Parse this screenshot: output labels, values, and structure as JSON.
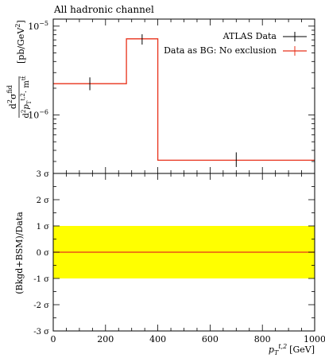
{
  "chart_data": [
    {
      "type": "line",
      "title": "All hadronic channel",
      "ylabel_main": "d²σ^fid / d²p_T^{t,2}·m^{tt̄} [pb/GeV²]",
      "ylabel_parts": {
        "num": "d",
        "num_sup": "2",
        "num_sym": "σ",
        "num_supfid": "fid",
        "den": "d",
        "den_sup": "2",
        "den_p": "p",
        "den_sub": "T",
        "den_supt2": "t,2",
        "den_m": "· m",
        "den_mtt": "tt̄",
        "unit": "[pb/GeV",
        "unit_sup": "2",
        "unit_close": "]"
      },
      "yscale": "log",
      "ylim": [
        2.2e-07,
        1.2e-05
      ],
      "y_ticks": [
        {
          "value": 1e-05,
          "base": "10",
          "exp": "−5"
        },
        {
          "value": 1e-06,
          "base": "10",
          "exp": "−6"
        }
      ],
      "xlim": [
        0,
        1000
      ],
      "legend_position": "top-right",
      "series": [
        {
          "name": "ATLAS Data",
          "color": "#000000",
          "points": [
            {
              "x": 140,
              "y": 2.25e-06,
              "yerr_low": 1.9e-06,
              "yerr_high": 2.65e-06
            },
            {
              "x": 340,
              "y": 7.2e-06,
              "yerr_low": 6.2e-06,
              "yerr_high": 8.1e-06
            },
            {
              "x": 700,
              "y": 3.1e-07,
              "yerr_low": 2.6e-07,
              "yerr_high": 3.8e-07
            }
          ]
        },
        {
          "name": "Data as BG: No exclusion",
          "color": "#e8311a",
          "bins": [
            {
              "x_low": 0,
              "x_high": 280,
              "y": 2.25e-06
            },
            {
              "x_low": 280,
              "x_high": 400,
              "y": 7.2e-06
            },
            {
              "x_low": 400,
              "x_high": 1000,
              "y": 3.1e-07
            }
          ]
        }
      ]
    },
    {
      "type": "line",
      "ylabel": "(Bkgd+BSM)/Data",
      "xlabel_p": "p",
      "xlabel_sub": "T",
      "xlabel_sup": "t,2",
      "xlabel_unit": "[GeV]",
      "xlim": [
        0,
        1000
      ],
      "x_ticks": [
        {
          "value": 0,
          "label": "0"
        },
        {
          "value": 200,
          "label": "200"
        },
        {
          "value": 400,
          "label": "400"
        },
        {
          "value": 600,
          "label": "600"
        },
        {
          "value": 800,
          "label": "800"
        },
        {
          "value": 1000,
          "label": "1000"
        }
      ],
      "ylim": [
        -3,
        3
      ],
      "y_ticks": [
        {
          "value": 3,
          "label": "3 σ"
        },
        {
          "value": 2,
          "label": "2 σ"
        },
        {
          "value": 1,
          "label": "1 σ"
        },
        {
          "value": 0,
          "label": "0 σ"
        },
        {
          "value": -1,
          "label": "-1 σ"
        },
        {
          "value": -2,
          "label": "-2 σ"
        },
        {
          "value": -3,
          "label": "-3 σ"
        }
      ],
      "band": {
        "y_low": -1,
        "y_high": 1,
        "color": "#ffff00"
      },
      "series": [
        {
          "color": "#e8311a",
          "points": [
            {
              "x": 0,
              "y": 0
            },
            {
              "x": 1000,
              "y": 0
            }
          ]
        }
      ]
    }
  ]
}
